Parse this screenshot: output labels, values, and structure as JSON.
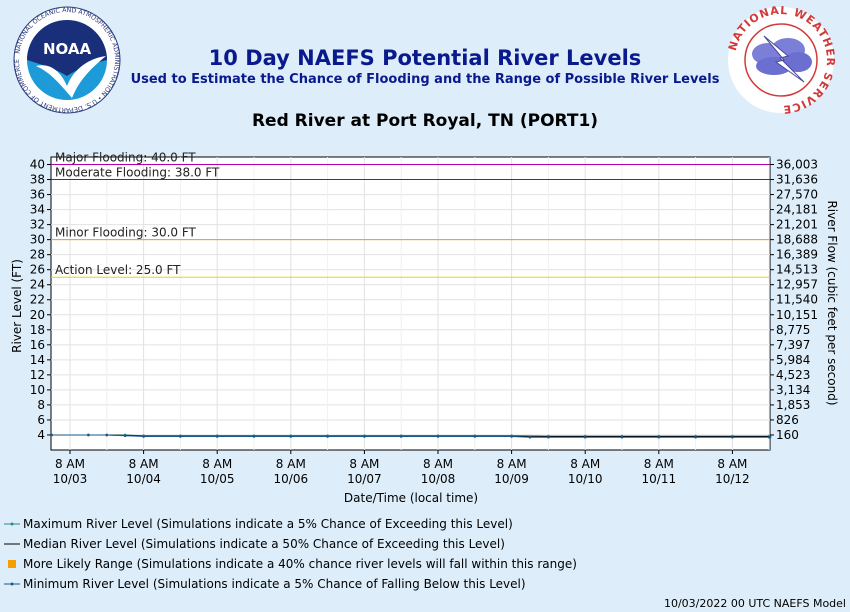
{
  "header": {
    "title": "10 Day NAEFS Potential River Levels",
    "subtitle": "Used to Estimate the Chance of Flooding and the Range of Possible River Levels",
    "station": "Red River at Port Royal, TN (PORT1)"
  },
  "logos": {
    "noaa_name": "NOAA",
    "noaa_ring_text": "NATIONAL OCEANIC AND ATMOSPHERIC ADMINISTRATION • U.S. DEPARTMENT OF COMMERCE",
    "nws_ring_text": "NATIONAL WEATHER SERVICE"
  },
  "chart_data": {
    "type": "line",
    "ylabel": "River Level (FT)",
    "y2label": "River Flow (cubic feet per second)",
    "xlabel": "Date/Time (local time)",
    "ylim": [
      2,
      41
    ],
    "yticks": [
      4,
      6,
      8,
      10,
      12,
      14,
      16,
      18,
      20,
      22,
      24,
      26,
      28,
      30,
      32,
      34,
      36,
      38,
      40
    ],
    "y2ticks": [
      "160",
      "826",
      "1,853",
      "3,134",
      "4,523",
      "5,984",
      "7,397",
      "8,775",
      "10,151",
      "11,540",
      "12,957",
      "14,513",
      "16,389",
      "18,688",
      "21,201",
      "24,181",
      "27,570",
      "31,636",
      "36,003"
    ],
    "xlim": [
      0,
      9.8
    ],
    "xticks": [
      {
        "x": 0,
        "time": "8 AM",
        "date": "10/03"
      },
      {
        "x": 1,
        "time": "8 AM",
        "date": "10/04"
      },
      {
        "x": 2,
        "time": "8 AM",
        "date": "10/05"
      },
      {
        "x": 3,
        "time": "8 AM",
        "date": "10/06"
      },
      {
        "x": 4,
        "time": "8 AM",
        "date": "10/07"
      },
      {
        "x": 5,
        "time": "8 AM",
        "date": "10/08"
      },
      {
        "x": 6,
        "time": "8 AM",
        "date": "10/09"
      },
      {
        "x": 7,
        "time": "8 AM",
        "date": "10/10"
      },
      {
        "x": 8,
        "time": "8 AM",
        "date": "10/11"
      },
      {
        "x": 9,
        "time": "8 AM",
        "date": "10/12"
      }
    ],
    "thresholds": [
      {
        "label": "Major Flooding: 40.0 FT",
        "value": 40.0,
        "color": "#b000b0"
      },
      {
        "label": "Moderate Flooding: 38.0 FT",
        "value": 38.0,
        "color": "#cc0000"
      },
      {
        "label": "Minor Flooding: 30.0 FT",
        "value": 30.0,
        "color": "#ff9900"
      },
      {
        "label": "Action Level: 25.0 FT",
        "value": 25.0,
        "color": "#e6d800"
      }
    ],
    "series": [
      {
        "key": "maximum",
        "color": "#2a8a8a",
        "x": [
          -0.25,
          0.25,
          0.5,
          0.75,
          1.0,
          1.5,
          2.0,
          2.5,
          3.0,
          3.5,
          4.0,
          4.5,
          5.0,
          5.5,
          6.0,
          6.5,
          7.0,
          7.5,
          8.0,
          8.5,
          9.0,
          9.5,
          9.8
        ],
        "y": [
          4.0,
          4.0,
          4.0,
          4.0,
          3.9,
          3.9,
          3.9,
          3.9,
          3.9,
          3.9,
          3.9,
          3.9,
          3.9,
          3.9,
          3.9,
          3.85,
          3.85,
          3.85,
          3.85,
          3.85,
          3.85,
          3.85,
          3.85
        ]
      },
      {
        "key": "median",
        "color": "#000000",
        "x": [
          -0.25,
          0.25,
          0.5,
          0.75,
          1.0,
          1.5,
          2.0,
          2.5,
          3.0,
          3.5,
          4.0,
          4.5,
          5.0,
          5.5,
          6.0,
          6.5,
          7.0,
          7.5,
          8.0,
          8.5,
          9.0,
          9.5,
          9.8
        ],
        "y": [
          4.0,
          4.0,
          4.0,
          3.95,
          3.85,
          3.85,
          3.85,
          3.85,
          3.85,
          3.85,
          3.85,
          3.85,
          3.85,
          3.85,
          3.85,
          3.8,
          3.8,
          3.8,
          3.8,
          3.8,
          3.8,
          3.8,
          3.8
        ]
      },
      {
        "key": "minimum",
        "color": "#1a5a8a",
        "x": [
          -0.25,
          0.25,
          0.5,
          0.75,
          1.0,
          1.5,
          2.0,
          2.5,
          3.0,
          3.5,
          4.0,
          4.5,
          5.0,
          5.5,
          6.0,
          6.25,
          6.5,
          7.0,
          7.5,
          8.0,
          8.5,
          9.0,
          9.5,
          9.8
        ],
        "y": [
          4.0,
          4.0,
          4.0,
          3.9,
          3.8,
          3.8,
          3.8,
          3.8,
          3.8,
          3.8,
          3.8,
          3.8,
          3.8,
          3.8,
          3.8,
          3.7,
          3.7,
          3.7,
          3.7,
          3.7,
          3.7,
          3.7,
          3.7,
          3.7
        ]
      }
    ],
    "legend": [
      {
        "key": "maximum",
        "label": "Maximum River Level (Simulations indicate a 5% Chance of Exceeding this Level)",
        "color": "#2a8a8a"
      },
      {
        "key": "median",
        "label": "Median River Level (Simulations indicate a 50% Chance of Exceeding this Level)",
        "color": "#000000"
      },
      {
        "key": "range",
        "label": "More Likely Range (Simulations indicate a 40% chance river levels will fall within this range)",
        "color": "#f5a000"
      },
      {
        "key": "minimum",
        "label": "Minimum River Level (Simulations indicate a 5% Chance of Falling Below this Level)",
        "color": "#1a5a8a"
      }
    ],
    "footer": "10/03/2022 00 UTC NAEFS Model"
  }
}
